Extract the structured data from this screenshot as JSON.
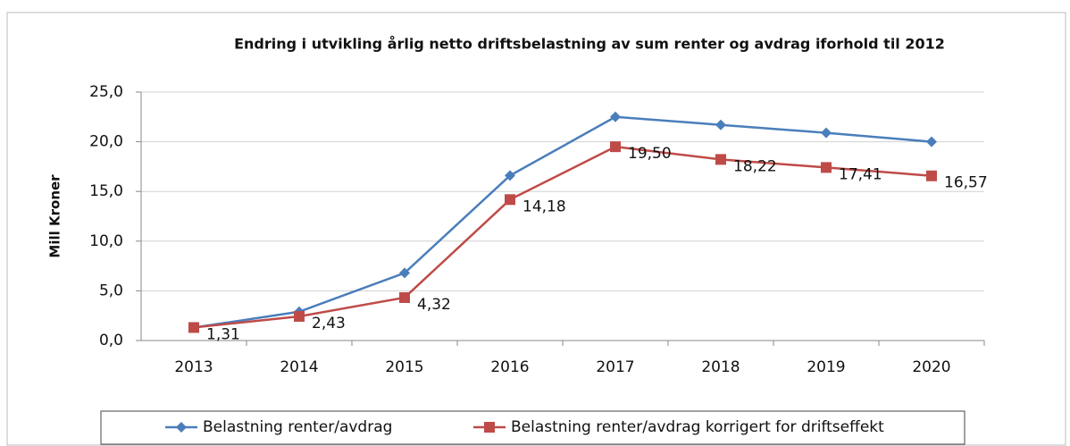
{
  "chart_data": {
    "type": "line",
    "title": "Endring i utvikling årlig netto driftsbelastning av sum renter og avdrag  iforhold til 2012",
    "y_label": "Mill Kroner",
    "categories": [
      "2013",
      "2014",
      "2015",
      "2016",
      "2017",
      "2018",
      "2019",
      "2020"
    ],
    "series": [
      {
        "name": "Belastning renter/avdrag",
        "color": "#4a7ebb",
        "marker": "diamond",
        "values": [
          1.3,
          2.9,
          6.8,
          16.6,
          22.5,
          21.7,
          20.9,
          20.0
        ]
      },
      {
        "name": "Belastning renter/avdrag korrigert for driftseffekt",
        "color": "#be4b48",
        "marker": "square",
        "values": [
          1.31,
          2.43,
          4.32,
          14.18,
          19.5,
          18.22,
          17.41,
          16.57
        ],
        "value_labels": [
          "1,31",
          "2,43",
          "4,32",
          "14,18",
          "19,50",
          "18,22",
          "17,41",
          "16,57"
        ]
      }
    ],
    "ylim": [
      0,
      25
    ],
    "yticks": [
      {
        "value": 0,
        "label": "0,0"
      },
      {
        "value": 5,
        "label": "5,0"
      },
      {
        "value": 10,
        "label": "10,0"
      },
      {
        "value": 15,
        "label": "15,0"
      },
      {
        "value": 20,
        "label": "20,0"
      },
      {
        "value": 25,
        "label": "25,0"
      }
    ],
    "grid": true,
    "legend": "bottom"
  }
}
